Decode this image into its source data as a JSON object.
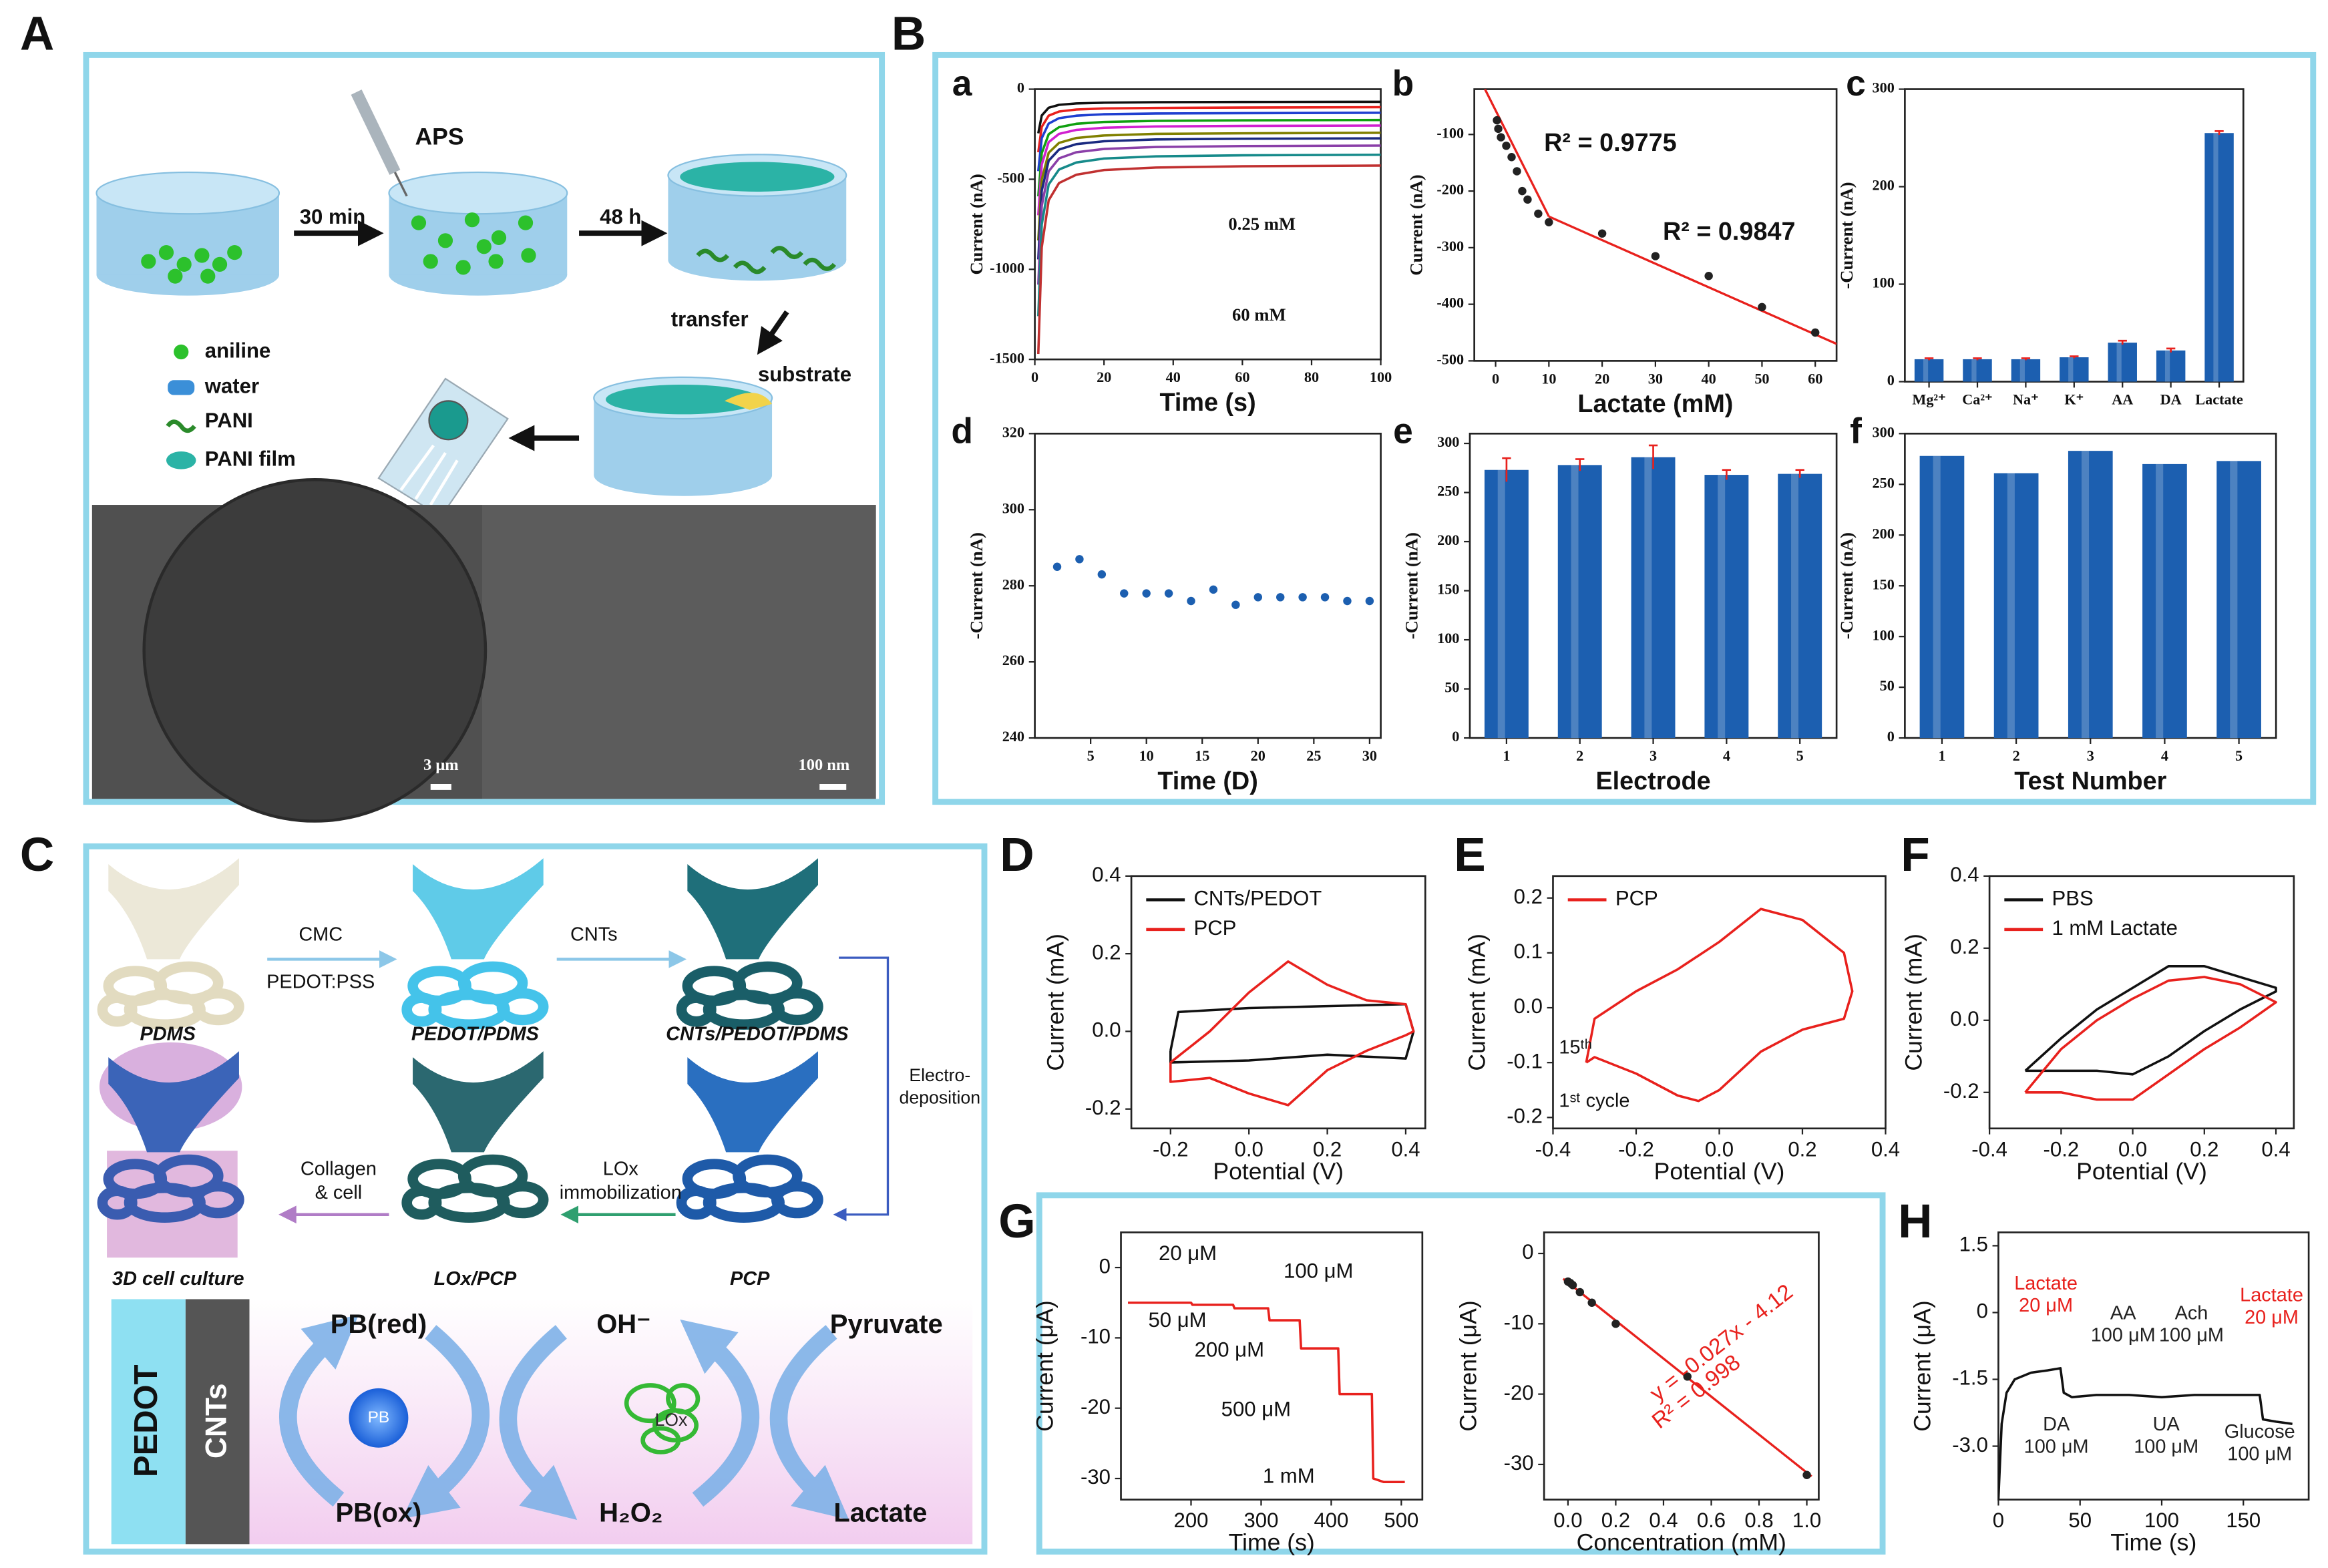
{
  "panel_labels": [
    "A",
    "B",
    "C",
    "D",
    "E",
    "F",
    "G",
    "H"
  ],
  "sub_labels": [
    "a",
    "b",
    "c",
    "d",
    "e",
    "f"
  ],
  "diagram_A": {
    "reagent": "APS",
    "step_1": "30 min",
    "step_2": "48 h",
    "transfer": "transfer",
    "substrate": "substrate",
    "legend": [
      "aniline",
      "water",
      "PANI",
      "PANI film"
    ],
    "scale_bars": [
      "3 μm",
      "100 nm"
    ]
  },
  "diagram_C": {
    "top_labels": [
      "PDMS",
      "PEDOT/PDMS",
      "CNTs/PEDOT/PDMS"
    ],
    "mid_labels": [
      "3D cell culture",
      "LOx/PCP",
      "PCP"
    ],
    "step_cmc": "CMC",
    "step_pss": "PEDOT:PSS",
    "step_cnts": "CNTs",
    "step_electro": [
      "Electro-",
      "deposition"
    ],
    "step_lox": [
      "LOx",
      "immobilization"
    ],
    "step_cell": [
      "Collagen",
      "& cell"
    ],
    "layers": [
      "PEDOT",
      "CNTs"
    ],
    "cycle": [
      "PB(red)",
      "PB",
      "PB(ox)",
      "OH⁻",
      "LOx",
      "H₂O₂",
      "Pyruvate",
      "Lactate"
    ]
  },
  "chart_data": [
    {
      "type": "line",
      "xlabel": "Time (s)",
      "ylabel": "Current (nA)",
      "xlim": [
        0,
        100
      ],
      "xticks": [
        0,
        20,
        40,
        60,
        80,
        100
      ],
      "ylim": [
        -1500,
        0
      ],
      "yticks": [
        -1500,
        -1000,
        -500,
        0
      ],
      "annotations": [
        "0.25 mM",
        "60 mM"
      ],
      "series": [
        {
          "color": "#111111",
          "x": [
            1,
            2,
            4,
            7,
            12,
            20,
            35,
            60,
            100
          ],
          "values": [
            -245,
            -146,
            -103,
            -87,
            -79,
            -75,
            -72,
            -71,
            -70
          ]
        },
        {
          "color": "#e8211d",
          "x": [
            1,
            2,
            4,
            7,
            12,
            20,
            35,
            60,
            100
          ],
          "values": [
            -350,
            -209,
            -147,
            -124,
            -113,
            -107,
            -104,
            -102,
            -100
          ]
        },
        {
          "color": "#1f3fd0",
          "x": [
            1,
            2,
            4,
            7,
            12,
            20,
            35,
            60,
            100
          ],
          "values": [
            -455,
            -272,
            -191,
            -161,
            -147,
            -139,
            -135,
            -133,
            -131
          ]
        },
        {
          "color": "#10a010",
          "x": [
            1,
            2,
            4,
            7,
            12,
            20,
            35,
            60,
            100
          ],
          "values": [
            -595,
            -355,
            -250,
            -211,
            -192,
            -182,
            -176,
            -173,
            -171
          ]
        },
        {
          "color": "#d020d0",
          "x": [
            1,
            2,
            4,
            7,
            12,
            20,
            35,
            60,
            100
          ],
          "values": [
            -700,
            -418,
            -294,
            -248,
            -226,
            -214,
            -207,
            -204,
            -202
          ]
        },
        {
          "color": "#808000",
          "x": [
            1,
            2,
            4,
            7,
            12,
            20,
            35,
            60,
            100
          ],
          "values": [
            -840,
            -502,
            -353,
            -298,
            -271,
            -257,
            -248,
            -245,
            -242
          ]
        },
        {
          "color": "#1a2a80",
          "x": [
            1,
            2,
            4,
            7,
            12,
            20,
            35,
            60,
            100
          ],
          "values": [
            -945,
            -564,
            -397,
            -335,
            -305,
            -289,
            -279,
            -275,
            -273
          ]
        },
        {
          "color": "#8a3fa8",
          "x": [
            1,
            2,
            4,
            7,
            12,
            20,
            35,
            60,
            100
          ],
          "values": [
            -1085,
            -648,
            -456,
            -384,
            -350,
            -332,
            -321,
            -316,
            -313
          ]
        },
        {
          "color": "#168a8a",
          "x": [
            1,
            2,
            4,
            7,
            12,
            20,
            35,
            60,
            100
          ],
          "values": [
            -1260,
            -752,
            -529,
            -446,
            -407,
            -385,
            -373,
            -367,
            -364
          ]
        },
        {
          "color": "#c03030",
          "x": [
            1,
            2,
            4,
            7,
            12,
            20,
            35,
            60,
            100
          ],
          "values": [
            -1470,
            -878,
            -617,
            -521,
            -475,
            -449,
            -435,
            -428,
            -424
          ]
        }
      ]
    },
    {
      "type": "scatter",
      "xlabel": "Lactate (mM)",
      "ylabel": "Current (nA)",
      "xlim": [
        -4,
        64
      ],
      "xticks": [
        0,
        10,
        20,
        30,
        40,
        50,
        60
      ],
      "ylim": [
        -500,
        -20
      ],
      "yticks": [
        -500,
        -400,
        -300,
        -200,
        -100
      ],
      "annotations": [
        "R² = 0.9775",
        "R² = 0.9847"
      ],
      "series": [
        {
          "color": "#222222",
          "x": [
            0.25,
            0.5,
            1,
            2,
            3,
            4,
            5,
            6,
            8,
            10,
            20,
            30,
            40,
            50,
            60
          ],
          "values": [
            -75,
            -90,
            -105,
            -120,
            -140,
            -165,
            -200,
            -215,
            -240,
            -255,
            -275,
            -315,
            -350,
            -405,
            -450
          ]
        }
      ],
      "fit_lines": [
        {
          "color": "#e8211d",
          "x": [
            -2,
            10
          ],
          "values": [
            -20,
            -245
          ]
        },
        {
          "color": "#e8211d",
          "x": [
            10,
            64
          ],
          "values": [
            -245,
            -470
          ]
        }
      ]
    },
    {
      "type": "bar",
      "ylabel": "-Current (nA)",
      "color": "#1c5fb0",
      "error_color": "#e8211d",
      "categories": [
        "Mg²⁺",
        "Ca²⁺",
        "Na⁺",
        "K⁺",
        "AA",
        "DA",
        "Lactate"
      ],
      "values": [
        23,
        23,
        23,
        25,
        40,
        32,
        255
      ],
      "errors": [
        1,
        1,
        1,
        1,
        2,
        2,
        2
      ],
      "ylim": [
        0,
        300
      ],
      "yticks": [
        0,
        100,
        200,
        300
      ]
    },
    {
      "type": "scatter",
      "xlabel": "Time (D)",
      "ylabel": "-Current (nA)",
      "xlim": [
        0,
        31
      ],
      "xticks": [
        5,
        10,
        15,
        20,
        25,
        30
      ],
      "ylim": [
        240,
        320
      ],
      "yticks": [
        240,
        260,
        280,
        300,
        320
      ],
      "series": [
        {
          "color": "#1c5fb0",
          "x": [
            2,
            4,
            6,
            8,
            10,
            12,
            14,
            16,
            18,
            20,
            22,
            24,
            26,
            28,
            30
          ],
          "values": [
            285,
            287,
            283,
            278,
            278,
            278,
            276,
            279,
            275,
            277,
            277,
            277,
            277,
            276,
            276
          ]
        }
      ]
    },
    {
      "type": "bar",
      "xlabel": "Electrode",
      "ylabel": "-Current (nA)",
      "color": "#1c5fb0",
      "error_color": "#e8211d",
      "categories": [
        "1",
        "2",
        "3",
        "4",
        "5"
      ],
      "values": [
        273,
        278,
        286,
        268,
        269
      ],
      "errors": [
        12,
        6,
        12,
        5,
        4
      ],
      "ylim": [
        0,
        310
      ],
      "yticks": [
        0,
        50,
        100,
        150,
        200,
        250,
        300
      ]
    },
    {
      "type": "bar",
      "xlabel": "Test Number",
      "ylabel": "-Current (nA)",
      "color": "#1c5fb0",
      "categories": [
        "1",
        "2",
        "3",
        "4",
        "5"
      ],
      "values": [
        278,
        261,
        283,
        270,
        273
      ],
      "ylim": [
        0,
        300
      ],
      "yticks": [
        0,
        50,
        100,
        150,
        200,
        250,
        300
      ]
    },
    {
      "type": "line",
      "xlabel": "Potential (V)",
      "ylabel": "Current (mA)",
      "legend": "upper left",
      "xlim": [
        -0.3,
        0.45
      ],
      "xticks": [
        -0.2,
        {
          "value": 0,
          "label": "0.0"
        },
        0.2,
        0.4
      ],
      "ylim": [
        -0.25,
        0.4
      ],
      "yticks": [
        -0.2,
        {
          "value": 0,
          "label": "0.0"
        },
        0.2,
        0.4
      ],
      "series": [
        {
          "name": "CNTs/PEDOT",
          "color": "#111111",
          "x": [
            -0.2,
            -0.18,
            0,
            0.2,
            0.4,
            0.42,
            0.4,
            0.2,
            0,
            -0.2,
            -0.2
          ],
          "values": [
            -0.05,
            0.05,
            0.06,
            0.065,
            0.07,
            0,
            -0.07,
            -0.06,
            -0.075,
            -0.08,
            -0.05
          ]
        },
        {
          "name": "PCP",
          "color": "#e8211d",
          "x": [
            -0.2,
            -0.1,
            0,
            0.1,
            0.2,
            0.3,
            0.4,
            0.42,
            0.4,
            0.3,
            0.2,
            0.1,
            0,
            -0.1,
            -0.2,
            -0.2
          ],
          "values": [
            -0.08,
            0,
            0.1,
            0.18,
            0.12,
            0.08,
            0.07,
            0,
            -0.01,
            -0.05,
            -0.1,
            -0.19,
            -0.16,
            -0.12,
            -0.13,
            -0.08
          ]
        }
      ]
    },
    {
      "type": "line",
      "xlabel": "Potential (V)",
      "ylabel": "Current (mA)",
      "legend": "upper left",
      "xlim": [
        -0.4,
        0.4
      ],
      "xticks": [
        -0.4,
        -0.2,
        {
          "value": 0,
          "label": "0.0"
        },
        0.2,
        0.4
      ],
      "ylim": [
        -0.22,
        0.24
      ],
      "yticks": [
        -0.2,
        -0.1,
        {
          "value": 0,
          "label": "0.0"
        },
        0.1,
        0.2
      ],
      "annotations": [
        "15ᵗʰ",
        "1ˢᵗ cycle"
      ],
      "series": [
        {
          "name": "PCP",
          "color": "#e8211d",
          "x": [
            -0.32,
            -0.3,
            -0.2,
            -0.1,
            0,
            0.1,
            0.2,
            0.3,
            0.32,
            0.3,
            0.2,
            0.1,
            0,
            -0.05,
            -0.1,
            -0.2,
            -0.3,
            -0.32
          ],
          "values": [
            -0.1,
            -0.02,
            0.03,
            0.07,
            0.12,
            0.18,
            0.16,
            0.1,
            0.03,
            -0.02,
            -0.04,
            -0.08,
            -0.15,
            -0.17,
            -0.16,
            -0.12,
            -0.09,
            -0.1
          ]
        }
      ]
    },
    {
      "type": "line",
      "xlabel": "Potential (V)",
      "ylabel": "Current (mA)",
      "legend": "upper left",
      "xlim": [
        -0.4,
        0.45
      ],
      "xticks": [
        -0.4,
        -0.2,
        {
          "value": 0,
          "label": "0.0"
        },
        0.2,
        0.4
      ],
      "ylim": [
        -0.3,
        0.4
      ],
      "yticks": [
        -0.2,
        {
          "value": 0,
          "label": "0.0"
        },
        0.2,
        0.4
      ],
      "series": [
        {
          "name": "PBS",
          "color": "#111111",
          "x": [
            -0.3,
            -0.2,
            -0.1,
            0,
            0.1,
            0.2,
            0.3,
            0.4,
            0.4,
            0.3,
            0.2,
            0.1,
            0,
            -0.1,
            -0.2,
            -0.3,
            -0.3
          ],
          "values": [
            -0.14,
            -0.05,
            0.03,
            0.09,
            0.15,
            0.15,
            0.12,
            0.09,
            0.08,
            0.03,
            -0.03,
            -0.1,
            -0.15,
            -0.14,
            -0.14,
            -0.14,
            -0.14
          ]
        },
        {
          "name": "1 mM Lactate",
          "color": "#e8211d",
          "x": [
            -0.3,
            -0.2,
            -0.1,
            0,
            0.1,
            0.2,
            0.3,
            0.4,
            0.4,
            0.3,
            0.2,
            0.1,
            0,
            -0.1,
            -0.2,
            -0.3,
            -0.3
          ],
          "values": [
            -0.2,
            -0.08,
            0,
            0.06,
            0.11,
            0.12,
            0.1,
            0.05,
            0.05,
            -0.02,
            -0.08,
            -0.15,
            -0.22,
            -0.22,
            -0.2,
            -0.2,
            -0.2
          ]
        }
      ]
    },
    {
      "type": "line",
      "xlabel": "Time (s)",
      "ylabel": "Current (μA)",
      "xlim": [
        100,
        530
      ],
      "xticks": [
        200,
        300,
        400,
        500
      ],
      "ylim": [
        -33,
        5
      ],
      "yticks": [
        0,
        -10,
        -20,
        -30
      ],
      "annotations": [
        "20 μM",
        "100 μM",
        "50 μM",
        "200 μM",
        "500 μM",
        "1 mM"
      ],
      "series": [
        {
          "color": "#e8211d",
          "x": [
            110,
            200,
            202,
            260,
            262,
            310,
            312,
            355,
            357,
            410,
            412,
            458,
            460,
            475,
            505
          ],
          "values": [
            -5,
            -5,
            -5.3,
            -5.3,
            -5.8,
            -5.8,
            -7.5,
            -7.5,
            -11.5,
            -11.5,
            -18,
            -18,
            -30,
            -30.5,
            -30.5
          ]
        }
      ]
    },
    {
      "type": "scatter",
      "xlabel": "Concentration (mM)",
      "ylabel": "Current (μA)",
      "xlim": [
        -0.1,
        1.05
      ],
      "xticks": [
        {
          "value": 0,
          "label": "0.0"
        },
        0.2,
        0.4,
        0.6,
        0.8,
        {
          "value": 1,
          "label": "1.0"
        }
      ],
      "ylim": [
        -35,
        3
      ],
      "yticks": [
        0,
        -10,
        -20,
        -30
      ],
      "annotations": [
        "y = -0.027x - 4.12",
        "R² = 0.998"
      ],
      "annotation_color": "#e8211d",
      "series": [
        {
          "color": "#222222",
          "x": [
            0,
            0.01,
            0.02,
            0.05,
            0.1,
            0.2,
            0.5,
            1
          ],
          "values": [
            -4,
            -4.2,
            -4.5,
            -5.5,
            -7,
            -10,
            -17.5,
            -31.5
          ]
        }
      ],
      "fit_lines": [
        {
          "color": "#e8211d",
          "x": [
            -0.02,
            1.02
          ],
          "values": [
            -3.6,
            -31.7
          ]
        }
      ]
    },
    {
      "type": "line",
      "xlabel": "Time (s)",
      "ylabel": "Current (μA)",
      "xlim": [
        0,
        190
      ],
      "xticks": [
        0,
        50,
        100,
        150
      ],
      "ylim": [
        -4.2,
        1.8
      ],
      "yticks": [
        1.5,
        0,
        -1.5,
        {
          "value": -3,
          "label": "-3.0"
        }
      ],
      "annotations": [
        [
          "Lactate",
          "20 μM"
        ],
        [
          "DA",
          "100 μM"
        ],
        [
          "AA",
          "100 μM"
        ],
        [
          "UA",
          "100 μM"
        ],
        [
          "Ach",
          "100 μM"
        ],
        [
          "Glucose",
          "100 μM"
        ],
        [
          "Lactate",
          "20 μM"
        ]
      ],
      "annotation_colors": [
        "#e8211d",
        "#222222",
        "#222222",
        "#222222",
        "#222222",
        "#222222",
        "#e8211d"
      ],
      "series": [
        {
          "color": "#111111",
          "x": [
            0,
            2,
            5,
            10,
            20,
            30,
            38,
            40,
            45,
            60,
            80,
            100,
            120,
            140,
            160,
            162,
            170,
            180
          ],
          "values": [
            -4.2,
            -2.5,
            -1.8,
            -1.5,
            -1.35,
            -1.3,
            -1.25,
            -1.8,
            -1.9,
            -1.85,
            -1.85,
            -1.9,
            -1.85,
            -1.85,
            -1.85,
            -2.4,
            -2.45,
            -2.5
          ]
        }
      ]
    }
  ]
}
